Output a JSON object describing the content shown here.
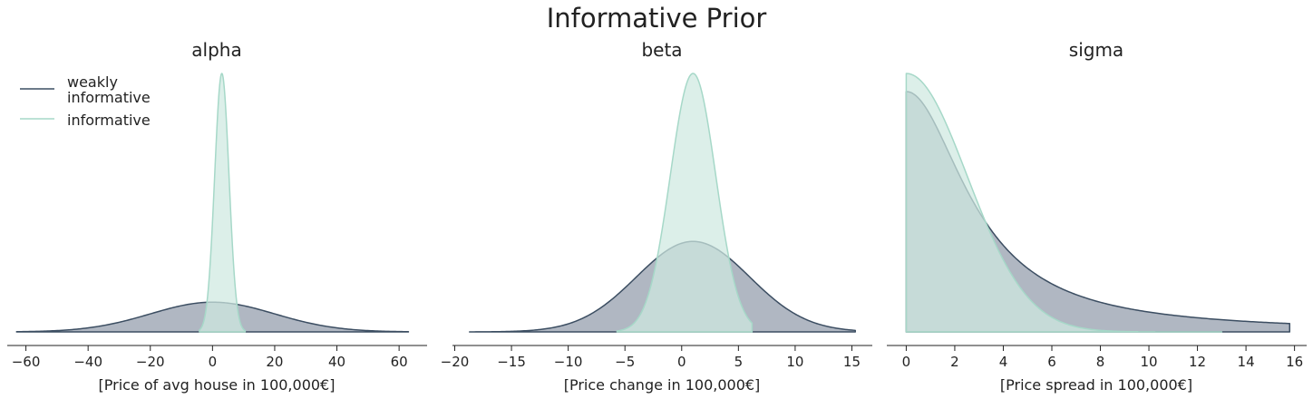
{
  "title": "Informative Prior",
  "colors": {
    "weakly_line": "#3c4e62",
    "weakly_fill": "#8f99a8",
    "informative_line": "#a6d8c8",
    "informative_fill": "#cfe9e1",
    "axis": "#222222"
  },
  "legend": {
    "placement": "upper-left of first panel",
    "entries": [
      {
        "series": "weakly",
        "lines": [
          "weakly",
          "informative"
        ]
      },
      {
        "series": "informative",
        "lines": [
          "informative"
        ]
      }
    ]
  },
  "chart_data": [
    {
      "type": "area",
      "title": "alpha",
      "xlabel": "[Price of avg house in 100,000€]",
      "xlim": [
        -66,
        69
      ],
      "xticks": [
        -60,
        -40,
        -20,
        0,
        20,
        40,
        60
      ],
      "xtick_labels": [
        "−60",
        "−40",
        "−20",
        "0",
        "20",
        "40",
        "60"
      ],
      "series": [
        {
          "name": "weakly informative",
          "dist": "normal",
          "mean": 0,
          "sd": 20,
          "range": [
            -63,
            63
          ],
          "peak_rel": 0.115
        },
        {
          "name": "informative",
          "dist": "normal",
          "mean": 3,
          "sd": 2.3,
          "range": [
            -4.2,
            10.5
          ],
          "peak_rel": 1.0
        }
      ]
    },
    {
      "type": "area",
      "title": "beta",
      "xlabel": "[Price change in 100,000€]",
      "xlim": [
        -20.2,
        16.8
      ],
      "xticks": [
        -20,
        -15,
        -10,
        -5,
        0,
        5,
        10,
        15
      ],
      "xtick_labels": [
        "−20",
        "−15",
        "−10",
        "−5",
        "0",
        "5",
        "10",
        "15"
      ],
      "series": [
        {
          "name": "weakly informative",
          "dist": "normal",
          "mean": 1,
          "sd": 5,
          "range": [
            -18.7,
            15.3
          ],
          "peak_rel": 0.35
        },
        {
          "name": "informative",
          "dist": "normal",
          "mean": 1,
          "sd": 2,
          "range": [
            -5.7,
            6.2
          ],
          "peak_rel": 1.0
        }
      ]
    },
    {
      "type": "area",
      "title": "sigma",
      "xlabel": "[Price spread in 100,000€]",
      "xlim": [
        -0.8,
        16.5
      ],
      "xticks": [
        0,
        2,
        4,
        6,
        8,
        10,
        12,
        14,
        16
      ],
      "xtick_labels": [
        "0",
        "2",
        "4",
        "6",
        "8",
        "10",
        "12",
        "14",
        "16"
      ],
      "series": [
        {
          "name": "weakly informative",
          "dist": "halfcauchy",
          "scale": 3,
          "range": [
            0,
            15.8
          ],
          "peak_rel": 0.93
        },
        {
          "name": "informative",
          "dist": "halfnormal",
          "scale": 2.5,
          "range": [
            0,
            13
          ],
          "peak_rel": 1.0
        }
      ]
    }
  ]
}
